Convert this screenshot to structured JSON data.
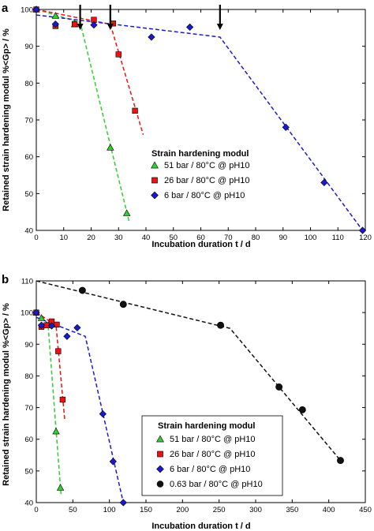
{
  "chart_data": [
    {
      "panel": "a",
      "type": "scatter",
      "xlabel": "Incubation duration t / d",
      "ylabel": "Retained strain hardening modul %<Gp> / %",
      "xlim": [
        0,
        120
      ],
      "ylim": [
        40,
        100
      ],
      "xticks": [
        0,
        10,
        20,
        30,
        40,
        50,
        60,
        70,
        80,
        90,
        100,
        110,
        120
      ],
      "yticks": [
        40,
        50,
        60,
        70,
        80,
        90,
        100
      ],
      "legend_title": "Strain hardening modul",
      "legend_position": "lower-middle",
      "grid": false,
      "series": [
        {
          "name": "51 bar / 80°C @ pH10",
          "marker": "triangle",
          "color": "#33cc33",
          "points": [
            [
              0,
              100
            ],
            [
              7,
              98.3
            ],
            [
              14,
              96
            ],
            [
              27,
              62.5
            ],
            [
              33,
              44.7
            ]
          ],
          "trend": [
            [
              0,
              100
            ],
            [
              16,
              96.5
            ],
            [
              34,
              42
            ]
          ]
        },
        {
          "name": "26 bar / 80°C @ pH10",
          "marker": "square",
          "color": "#ee1111",
          "points": [
            [
              0,
              100
            ],
            [
              7,
              95.5
            ],
            [
              14,
              96
            ],
            [
              21,
              97.2
            ],
            [
              28,
              96.2
            ],
            [
              30,
              87.8
            ],
            [
              36,
              72.5
            ]
          ],
          "trend": [
            [
              0,
              100
            ],
            [
              27,
              96
            ],
            [
              39,
              66
            ]
          ]
        },
        {
          "name": "6 bar / 80°C @ pH10",
          "marker": "diamond",
          "color": "#1a1acc",
          "points": [
            [
              0,
              100
            ],
            [
              7,
              96
            ],
            [
              21,
              95.8
            ],
            [
              42,
              92.5
            ],
            [
              56,
              95.2
            ],
            [
              91,
              68
            ],
            [
              105,
              53
            ],
            [
              119,
              40
            ]
          ],
          "trend": [
            [
              0,
              98.5
            ],
            [
              67,
              92.5
            ],
            [
              119,
              40
            ]
          ]
        }
      ],
      "arrows_at_x": [
        16,
        27,
        67
      ]
    },
    {
      "panel": "b",
      "type": "scatter",
      "xlabel": "Incubation duration t / d",
      "ylabel": "Retained strain hardening modul %<Gp> / %",
      "xlim": [
        0,
        450
      ],
      "ylim": [
        40,
        110
      ],
      "xticks": [
        0,
        50,
        100,
        150,
        200,
        250,
        300,
        350,
        400,
        450
      ],
      "yticks": [
        40,
        50,
        60,
        70,
        80,
        90,
        100,
        110
      ],
      "legend_title": "Strain hardening modul",
      "legend_position": "lower-middle",
      "grid": false,
      "series": [
        {
          "name": "51 bar / 80°C @ pH10",
          "marker": "triangle",
          "color": "#33cc33",
          "points": [
            [
              0,
              100
            ],
            [
              7,
              98.3
            ],
            [
              14,
              96
            ],
            [
              27,
              62.5
            ],
            [
              33,
              44.7
            ]
          ],
          "trend": [
            [
              0,
              100
            ],
            [
              16,
              96.5
            ],
            [
              34,
              42
            ]
          ]
        },
        {
          "name": "26 bar / 80°C @ pH10",
          "marker": "square",
          "color": "#ee1111",
          "points": [
            [
              0,
              100
            ],
            [
              7,
              95.5
            ],
            [
              14,
              96
            ],
            [
              21,
              97.2
            ],
            [
              28,
              96.2
            ],
            [
              30,
              87.8
            ],
            [
              36,
              72.5
            ]
          ],
          "trend": [
            [
              0,
              100
            ],
            [
              27,
              96
            ],
            [
              39,
              66
            ]
          ]
        },
        {
          "name": "6 bar / 80°C @ pH10",
          "marker": "diamond",
          "color": "#1a1acc",
          "points": [
            [
              0,
              100
            ],
            [
              7,
              96
            ],
            [
              21,
              95.8
            ],
            [
              42,
              92.5
            ],
            [
              56,
              95.2
            ],
            [
              91,
              68
            ],
            [
              105,
              53
            ],
            [
              119,
              40
            ]
          ],
          "trend": [
            [
              0,
              98.5
            ],
            [
              67,
              92.5
            ],
            [
              119,
              40
            ]
          ]
        },
        {
          "name": "0.63 bar / 80°C @ pH10",
          "marker": "circle",
          "color": "#111111",
          "points": [
            [
              63,
              107
            ],
            [
              119,
              102.6
            ],
            [
              252,
              96
            ],
            [
              332,
              76.5
            ],
            [
              364,
              69.3
            ],
            [
              416,
              53.3
            ]
          ],
          "trend": [
            [
              0,
              110
            ],
            [
              265,
              95
            ],
            [
              416,
              53.3
            ]
          ]
        }
      ]
    }
  ]
}
